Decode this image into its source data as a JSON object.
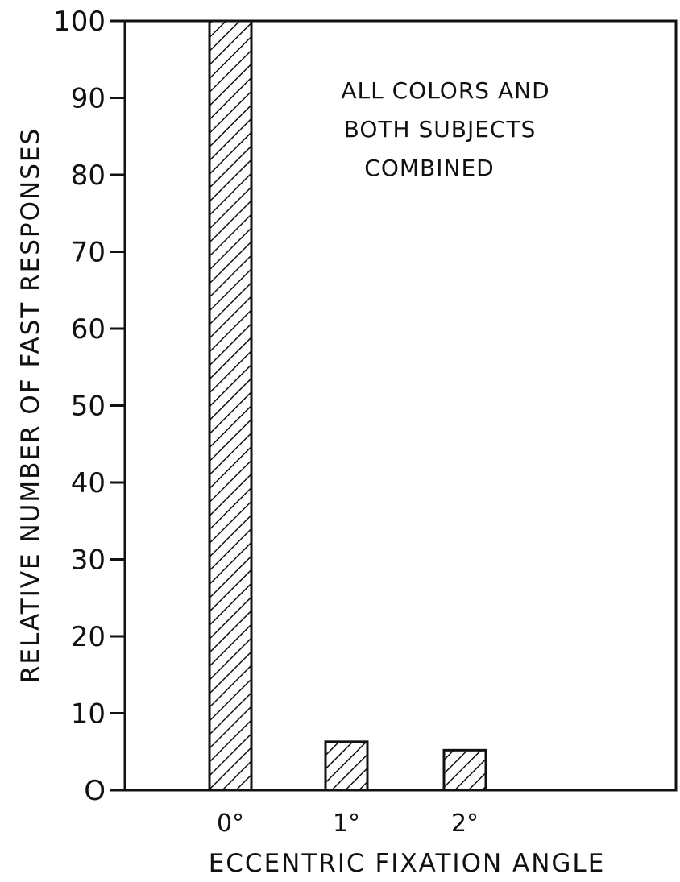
{
  "chart_data": {
    "type": "bar",
    "categories": [
      "0°",
      "1°",
      "2°"
    ],
    "values": [
      100,
      6.3,
      5.2
    ],
    "xlabel": "ECCENTRIC FIXATION ANGLE",
    "ylabel": "RELATIVE NUMBER OF FAST RESPONSES",
    "ylim": [
      0,
      100
    ],
    "yticks": [
      0,
      10,
      20,
      30,
      40,
      50,
      60,
      70,
      80,
      90,
      100
    ],
    "ytick_labels": [
      "O",
      "10",
      "20",
      "30",
      "40",
      "50",
      "60",
      "70",
      "80",
      "90",
      "100"
    ],
    "annotation_lines": [
      "ALL COLORS AND",
      "BOTH SUBJECTS",
      "COMBINED"
    ],
    "bar_style": "diagonal-hatch",
    "grid": false,
    "legend": "none"
  }
}
